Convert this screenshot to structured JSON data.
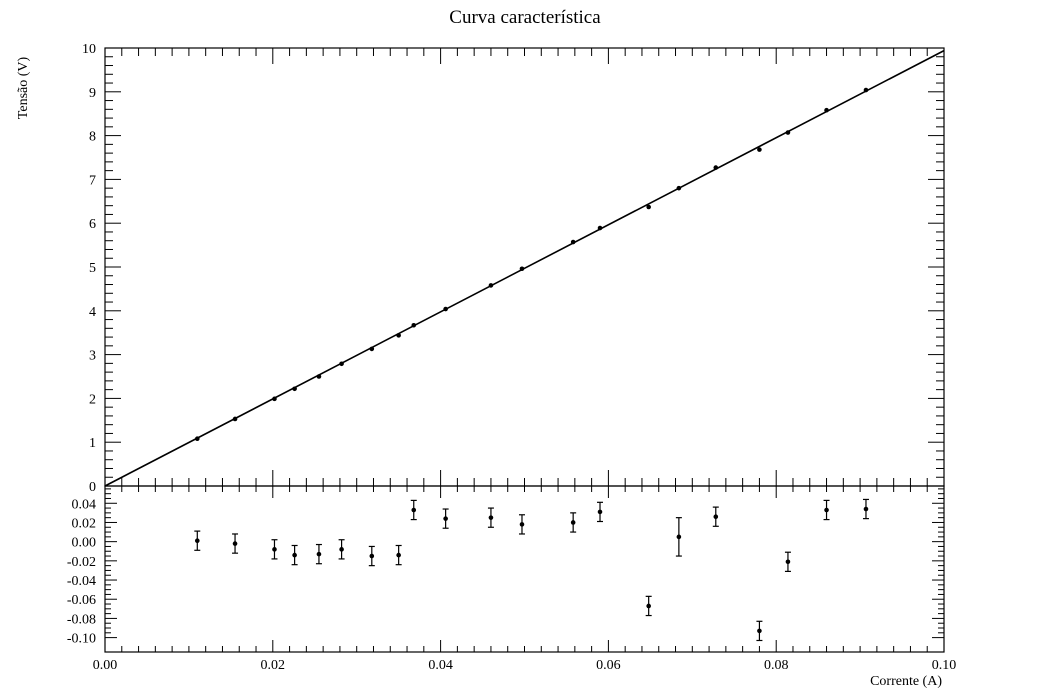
{
  "chart_data": [
    {
      "type": "scatter",
      "title": "Curva característica",
      "xlabel": "",
      "ylabel": "Tensão (V)",
      "xlim": [
        0,
        0.1
      ],
      "ylim": [
        0,
        10
      ],
      "y_ticks": [
        "0",
        "1",
        "2",
        "3",
        "4",
        "5",
        "6",
        "7",
        "8",
        "9",
        "10"
      ],
      "grid": false,
      "fit_line": {
        "x": [
          0,
          0.1
        ],
        "y": [
          0.0,
          9.94
        ]
      },
      "series": [
        {
          "x": [
            0.011,
            0.0155,
            0.0202,
            0.0226,
            0.0255,
            0.0282,
            0.0318,
            0.035,
            0.0368,
            0.0406,
            0.046,
            0.0497,
            0.0558,
            0.059,
            0.0648,
            0.0684,
            0.0728,
            0.078,
            0.0814,
            0.086,
            0.0907
          ],
          "y": [
            1.08,
            1.53,
            1.99,
            2.22,
            2.5,
            2.79,
            3.13,
            3.44,
            3.67,
            4.04,
            4.58,
            4.96,
            5.57,
            5.89,
            6.37,
            6.8,
            7.27,
            7.68,
            8.07,
            8.58,
            9.04
          ]
        }
      ]
    },
    {
      "type": "scatter",
      "title": "",
      "xlabel": "Corrente (A)",
      "ylabel": "",
      "xlim": [
        0,
        0.1
      ],
      "ylim": [
        -0.115,
        0.058
      ],
      "x_ticks": [
        "0.00",
        "0.02",
        "0.04",
        "0.06",
        "0.08",
        "0.10"
      ],
      "y_ticks": [
        "0.04",
        "0.02",
        "0.00",
        "-0.02",
        "-0.04",
        "-0.06",
        "-0.08",
        "-0.10"
      ],
      "grid": false,
      "series": [
        {
          "x": [
            0.011,
            0.0155,
            0.0202,
            0.0226,
            0.0255,
            0.0282,
            0.0318,
            0.035,
            0.0368,
            0.0406,
            0.046,
            0.0497,
            0.0558,
            0.059,
            0.0648,
            0.0684,
            0.0728,
            0.078,
            0.0814,
            0.086,
            0.0907
          ],
          "y": [
            0.001,
            -0.002,
            -0.008,
            -0.014,
            -0.013,
            -0.008,
            -0.015,
            -0.014,
            0.033,
            0.024,
            0.025,
            0.018,
            0.02,
            0.031,
            -0.067,
            0.005,
            0.026,
            -0.093,
            -0.021,
            0.033,
            0.034
          ],
          "y_err": [
            0.01,
            0.01,
            0.01,
            0.01,
            0.01,
            0.01,
            0.01,
            0.01,
            0.01,
            0.01,
            0.01,
            0.01,
            0.01,
            0.01,
            0.01,
            0.02,
            0.01,
            0.01,
            0.01,
            0.01,
            0.01
          ]
        }
      ]
    }
  ]
}
